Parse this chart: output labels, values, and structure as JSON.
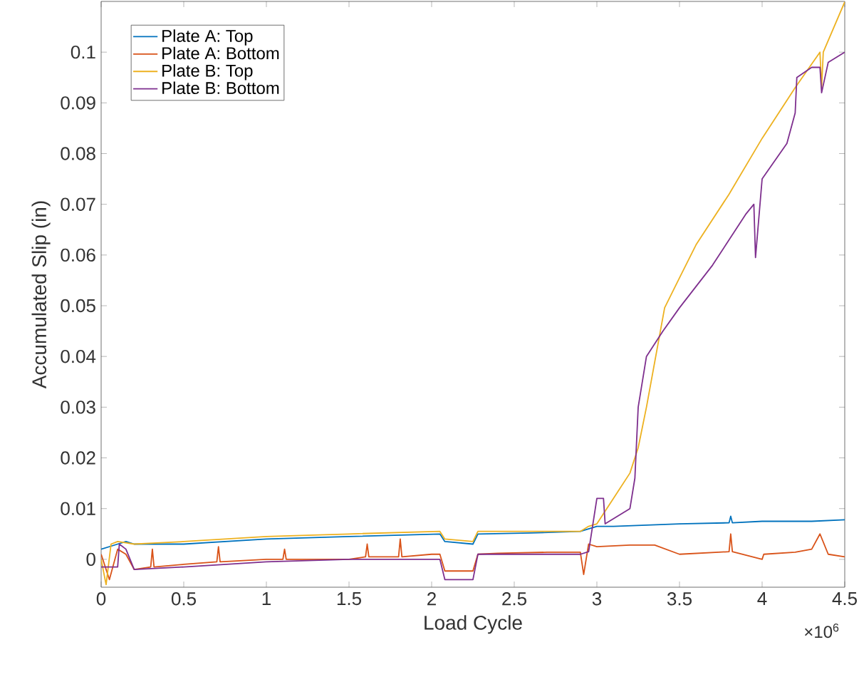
{
  "chart_data": {
    "type": "line",
    "xlabel": "Load Cycle",
    "ylabel": "Accumulated Slip (in)",
    "annotations": [
      "×10$^{6}$"
    ],
    "xlim": [
      0,
      4.5
    ],
    "ylim": [
      -0.0055,
      0.11
    ],
    "xticks": [
      0,
      0.5,
      1,
      1.5,
      2,
      2.5,
      3,
      3.5,
      4,
      4.5
    ],
    "yticks": [
      0,
      0.01,
      0.02,
      0.03,
      0.04,
      0.05,
      0.06,
      0.07,
      0.08,
      0.09,
      0.1
    ],
    "legend": "top left",
    "grid": false,
    "marker": "none",
    "line_style": "solid",
    "series": [
      {
        "name": "Plate A: Top",
        "color": "#0072bd",
        "x": [
          0,
          0.1,
          0.15,
          0.2,
          0.5,
          1,
          1.5,
          2.05,
          2.08,
          2.25,
          2.28,
          2.6,
          2.9,
          3,
          3.1,
          3.5,
          3.8,
          3.81,
          3.82,
          4,
          4.3,
          4.5
        ],
        "values": [
          0.002,
          0.003,
          0.0035,
          0.003,
          0.003,
          0.004,
          0.0045,
          0.005,
          0.0035,
          0.003,
          0.005,
          0.0052,
          0.0055,
          0.0065,
          0.0065,
          0.007,
          0.0072,
          0.0085,
          0.0072,
          0.0075,
          0.0075,
          0.0078
        ]
      },
      {
        "name": "Plate A: Bottom",
        "color": "#d95319",
        "x": [
          0,
          0.05,
          0.1,
          0.15,
          0.2,
          0.3,
          0.31,
          0.32,
          0.5,
          0.7,
          0.71,
          0.72,
          1,
          1.1,
          1.11,
          1.12,
          1.5,
          1.6,
          1.61,
          1.62,
          1.8,
          1.81,
          1.82,
          2,
          2.05,
          2.08,
          2.25,
          2.28,
          2.4,
          2.7,
          2.9,
          2.92,
          2.95,
          3,
          3.2,
          3.35,
          3.5,
          3.8,
          3.81,
          3.82,
          4,
          4.01,
          4.2,
          4.3,
          4.35,
          4.4,
          4.5
        ],
        "values": [
          0.001,
          -0.004,
          0.002,
          0.001,
          -0.002,
          -0.0015,
          0.002,
          -0.0015,
          -0.001,
          -0.0005,
          0.0025,
          -0.0005,
          0,
          0,
          0.002,
          0,
          0,
          0.0005,
          0.003,
          0.0005,
          0.0005,
          0.004,
          0.0005,
          0.001,
          0.001,
          -0.0023,
          -0.0023,
          0.001,
          0.0012,
          0.0014,
          0.0014,
          -0.003,
          0.003,
          0.0025,
          0.0028,
          0.0028,
          0.001,
          0.0015,
          0.005,
          0.0015,
          0,
          0.001,
          0.0014,
          0.002,
          0.005,
          0.001,
          0.0005
        ]
      },
      {
        "name": "Plate B: Top",
        "color": "#edb120",
        "x": [
          0,
          0.03,
          0.06,
          0.1,
          0.2,
          0.5,
          1,
          1.5,
          2.05,
          2.08,
          2.25,
          2.28,
          2.6,
          2.9,
          2.95,
          3,
          3.1,
          3.2,
          3.25,
          3.3,
          3.41,
          3.5,
          3.6,
          3.8,
          4,
          4.2,
          4.35,
          4.36,
          4.37,
          4.5
        ],
        "values": [
          0,
          -0.005,
          0.003,
          0.0035,
          0.003,
          0.0035,
          0.0045,
          0.005,
          0.0055,
          0.004,
          0.0035,
          0.0055,
          0.0055,
          0.0055,
          0.0065,
          0.007,
          0.012,
          0.017,
          0.022,
          0.03,
          0.0496,
          0.0555,
          0.062,
          0.072,
          0.083,
          0.093,
          0.1,
          0.093,
          0.1,
          0.1099
        ]
      },
      {
        "name": "Plate B: Bottom",
        "color": "#7e2f8e",
        "x": [
          0,
          0.1,
          0.11,
          0.15,
          0.2,
          0.5,
          1,
          1.5,
          2.05,
          2.08,
          2.25,
          2.28,
          2.6,
          2.9,
          2.95,
          3,
          3.04,
          3.05,
          3.2,
          3.23,
          3.25,
          3.3,
          3.4,
          3.5,
          3.7,
          3.9,
          3.95,
          3.96,
          4,
          4.15,
          4.2,
          4.21,
          4.3,
          4.35,
          4.36,
          4.4,
          4.5
        ],
        "values": [
          -0.0015,
          -0.0015,
          0.003,
          0.002,
          -0.002,
          -0.0015,
          -0.0005,
          0,
          0,
          -0.004,
          -0.004,
          0.001,
          0.001,
          0.001,
          0.0015,
          0.012,
          0.012,
          0.007,
          0.01,
          0.016,
          0.03,
          0.04,
          0.045,
          0.0496,
          0.058,
          0.068,
          0.07,
          0.0595,
          0.075,
          0.082,
          0.088,
          0.095,
          0.097,
          0.097,
          0.092,
          0.098,
          0.1
        ]
      }
    ]
  }
}
